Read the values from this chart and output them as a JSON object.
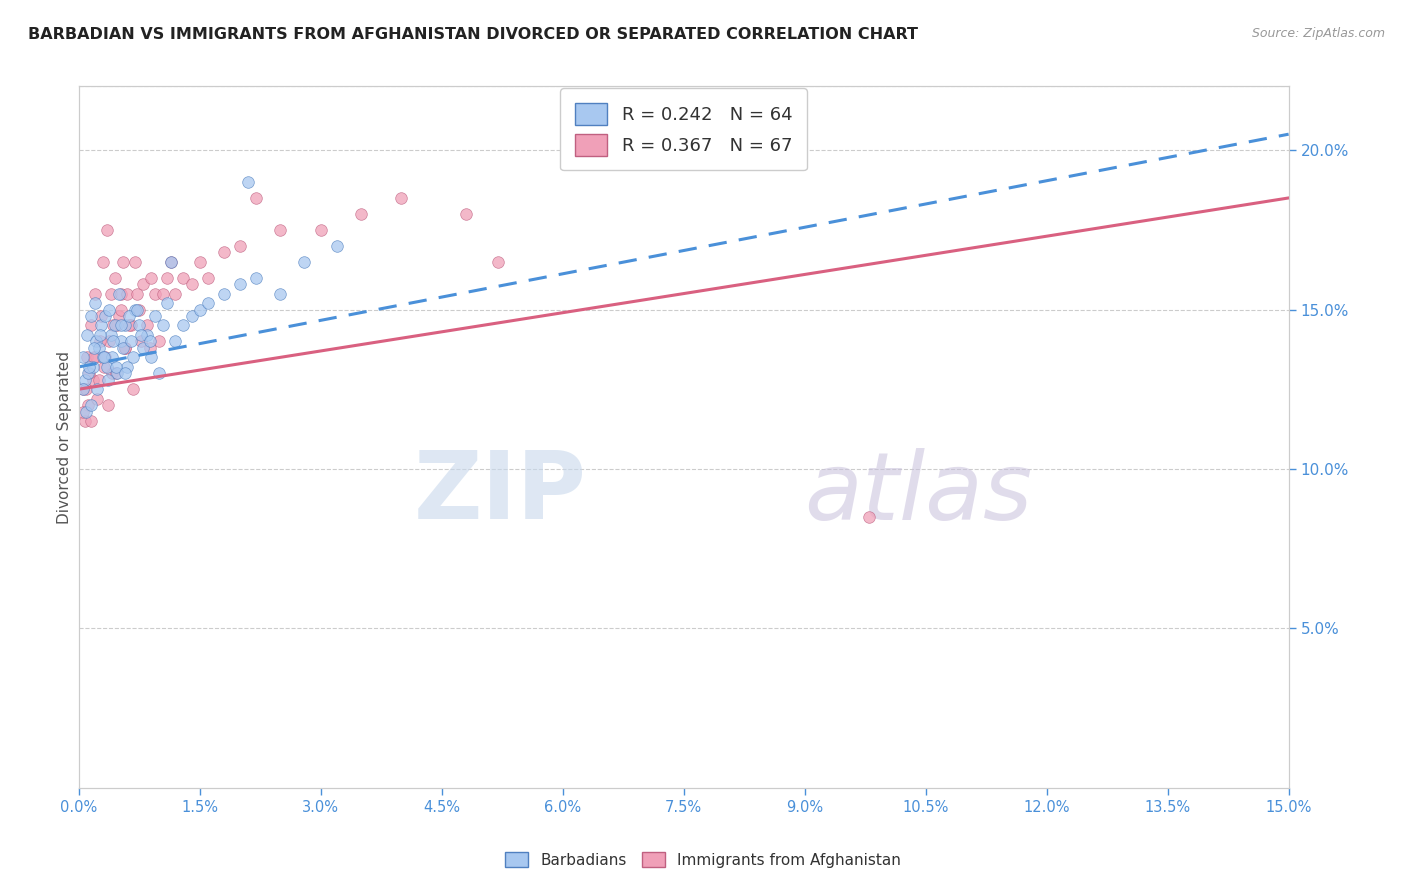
{
  "title": "BARBADIAN VS IMMIGRANTS FROM AFGHANISTAN DIVORCED OR SEPARATED CORRELATION CHART",
  "source": "Source: ZipAtlas.com",
  "ylabel_label": "Divorced or Separated",
  "xlim": [
    0.0,
    15.0
  ],
  "ylim": [
    0.0,
    22.0
  ],
  "right_yticks": [
    5.0,
    10.0,
    15.0,
    20.0
  ],
  "legend_r1": "R = 0.242",
  "legend_n1": "N = 64",
  "legend_r2": "R = 0.367",
  "legend_n2": "N = 67",
  "color_blue": "#a8c8f0",
  "color_pink": "#f0a0b8",
  "color_blue_line": "#4a90d9",
  "color_pink_line": "#d96080",
  "blue_scatter_x": [
    0.05,
    0.08,
    0.1,
    0.12,
    0.15,
    0.18,
    0.2,
    0.22,
    0.25,
    0.28,
    0.3,
    0.33,
    0.35,
    0.38,
    0.4,
    0.42,
    0.45,
    0.48,
    0.5,
    0.52,
    0.55,
    0.58,
    0.6,
    0.65,
    0.7,
    0.75,
    0.8,
    0.85,
    0.9,
    0.95,
    1.0,
    1.05,
    1.1,
    1.2,
    1.3,
    1.4,
    1.5,
    1.6,
    1.8,
    2.0,
    2.2,
    2.5,
    2.8,
    3.2,
    0.06,
    0.09,
    0.13,
    0.16,
    0.19,
    0.23,
    0.27,
    0.32,
    0.37,
    0.43,
    0.47,
    0.53,
    0.57,
    0.63,
    0.67,
    0.73,
    0.78,
    0.88,
    1.15,
    2.1
  ],
  "blue_scatter_y": [
    13.5,
    12.8,
    14.2,
    13.0,
    14.8,
    13.2,
    15.2,
    14.0,
    13.8,
    14.5,
    13.5,
    14.8,
    13.2,
    15.0,
    14.2,
    13.5,
    14.5,
    13.0,
    15.5,
    14.0,
    13.8,
    14.5,
    13.2,
    14.0,
    15.0,
    14.5,
    13.8,
    14.2,
    13.5,
    14.8,
    13.0,
    14.5,
    15.2,
    14.0,
    14.5,
    14.8,
    15.0,
    15.2,
    15.5,
    15.8,
    16.0,
    15.5,
    16.5,
    17.0,
    12.5,
    11.8,
    13.2,
    12.0,
    13.8,
    12.5,
    14.2,
    13.5,
    12.8,
    14.0,
    13.2,
    14.5,
    13.0,
    14.8,
    13.5,
    15.0,
    14.2,
    14.0,
    16.5,
    19.0
  ],
  "pink_scatter_x": [
    0.05,
    0.08,
    0.1,
    0.12,
    0.15,
    0.18,
    0.2,
    0.22,
    0.25,
    0.28,
    0.3,
    0.33,
    0.35,
    0.38,
    0.4,
    0.42,
    0.45,
    0.48,
    0.5,
    0.52,
    0.55,
    0.58,
    0.6,
    0.65,
    0.7,
    0.75,
    0.8,
    0.85,
    0.9,
    0.95,
    1.0,
    1.05,
    1.1,
    1.2,
    1.3,
    1.4,
    1.5,
    1.6,
    1.8,
    2.0,
    2.5,
    3.0,
    3.5,
    4.0,
    0.06,
    0.09,
    0.13,
    0.16,
    0.19,
    0.23,
    0.27,
    0.32,
    0.37,
    0.43,
    0.47,
    0.53,
    0.57,
    0.63,
    0.67,
    0.73,
    0.78,
    0.88,
    1.15,
    2.2,
    4.8,
    5.2,
    9.8
  ],
  "pink_scatter_y": [
    12.5,
    11.5,
    13.5,
    12.0,
    14.5,
    12.8,
    15.5,
    13.5,
    12.8,
    14.8,
    16.5,
    13.5,
    17.5,
    14.0,
    15.5,
    13.0,
    16.0,
    14.5,
    14.8,
    15.5,
    16.5,
    13.8,
    15.5,
    14.5,
    16.5,
    15.0,
    15.8,
    14.5,
    16.0,
    15.5,
    14.0,
    15.5,
    16.0,
    15.5,
    16.0,
    15.8,
    16.5,
    16.0,
    16.8,
    17.0,
    17.5,
    17.5,
    18.0,
    18.5,
    11.8,
    12.5,
    13.0,
    11.5,
    13.5,
    12.2,
    14.0,
    13.2,
    12.0,
    14.5,
    13.0,
    15.0,
    13.8,
    14.5,
    12.5,
    15.5,
    14.0,
    13.8,
    16.5,
    18.5,
    18.0,
    16.5,
    8.5
  ],
  "blue_trend_x0": 0.0,
  "blue_trend_y0": 13.2,
  "blue_trend_x1": 15.0,
  "blue_trend_y1": 20.5,
  "pink_trend_x0": 0.0,
  "pink_trend_y0": 12.5,
  "pink_trend_x1": 15.0,
  "pink_trend_y1": 18.5
}
